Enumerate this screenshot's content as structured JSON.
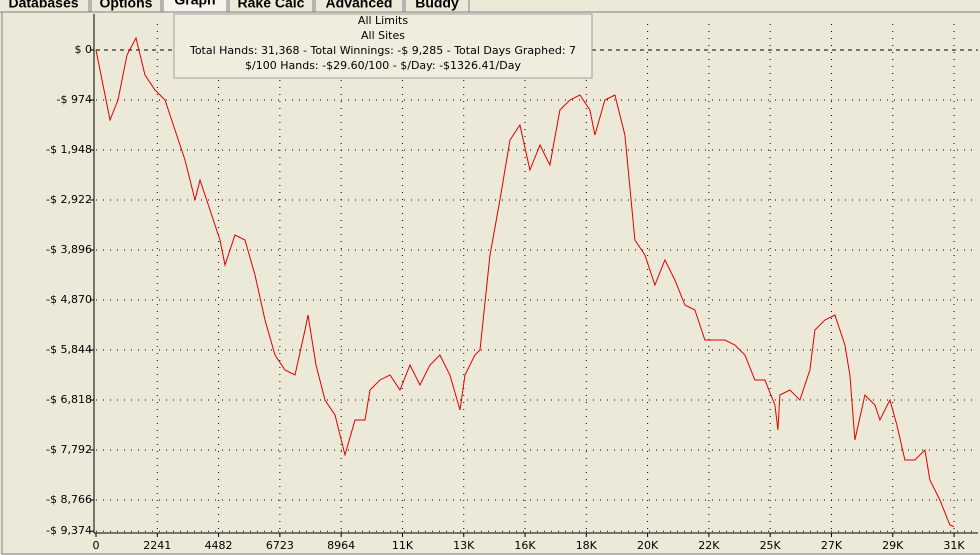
{
  "tabs": [
    "Databases",
    "Options",
    "Graph",
    "Rake Calc",
    "Advanced",
    "Buddy"
  ],
  "chart_data": {
    "type": "line",
    "info": [
      "All Limits",
      "All Sites",
      "Total Hands: 31,368 - Total Winnings: -$ 9,285 - Total Days Graphed: 7",
      "$/100 Hands: -$29.60/100 - $/Day: -$1326.41/Day"
    ],
    "x": [
      0,
      329,
      512,
      804,
      1133,
      1462,
      1791,
      2157,
      2523,
      2888,
      3254,
      3619,
      3802,
      4168,
      4533,
      4716,
      5082,
      5447,
      5813,
      6179,
      6544,
      6910,
      7275,
      7641,
      7751,
      8043,
      8372,
      8738,
      9103,
      9469,
      9835,
      10017,
      10383,
      10749,
      11114,
      11480,
      11845,
      12211,
      12576,
      12942,
      13308,
      13491,
      13856,
      14039,
      14405,
      14770,
      15136,
      15501,
      15867,
      16233,
      16598,
      16964,
      17329,
      17695,
      18061,
      18243,
      18609,
      18975,
      19340,
      19706,
      20071,
      20437,
      20802,
      21168,
      21534,
      21899,
      22265,
      22630,
      22996,
      23362,
      23727,
      24093,
      24458,
      24824,
      24934,
      25007,
      25373,
      25738,
      26104,
      26287,
      26652,
      27018,
      27384,
      27566,
      27749,
      28115,
      28480,
      28663,
      29029,
      29285,
      29577,
      29943,
      30308,
      30491,
      30857,
      31222,
      31368
    ],
    "series": [
      {
        "color": "#e00000",
        "values": [
          0,
          -877,
          -1364,
          -974,
          -97,
          234,
          -487,
          -779,
          -974,
          -1558,
          -2143,
          -2922,
          -2532,
          -3117,
          -3701,
          -4188,
          -3604,
          -3701,
          -4383,
          -5260,
          -5941,
          -6234,
          -6331,
          -5454,
          -5162,
          -6136,
          -6818,
          -7110,
          -7889,
          -7208,
          -7208,
          -6623,
          -6428,
          -6331,
          -6623,
          -6136,
          -6526,
          -6136,
          -5941,
          -6331,
          -7013,
          -6331,
          -5941,
          -5844,
          -3993,
          -2922,
          -1753,
          -1461,
          -2338,
          -1851,
          -2240,
          -1169,
          -974,
          -877,
          -1169,
          -1656,
          -974,
          -877,
          -1656,
          -3701,
          -3993,
          -4578,
          -4091,
          -4480,
          -4967,
          -5065,
          -5649,
          -5649,
          -5649,
          -5747,
          -5941,
          -6428,
          -6428,
          -6915,
          -7402,
          -6721,
          -6623,
          -6818,
          -6234,
          -5454,
          -5260,
          -5162,
          -5747,
          -6331,
          -7597,
          -6721,
          -6915,
          -7208,
          -6818,
          -7305,
          -7987,
          -7987,
          -7792,
          -8376,
          -8766,
          -9253,
          -9285
        ]
      }
    ],
    "xlim": [
      0,
      32250
    ],
    "ylim": [
      -9448,
      701
    ],
    "xticks": [
      0,
      2241,
      4482,
      6723,
      8964,
      {
        "value": 11205,
        "label": "11K"
      },
      {
        "value": 13446,
        "label": "13K"
      },
      {
        "value": 15687,
        "label": "16K"
      },
      {
        "value": 17928,
        "label": "18K"
      },
      {
        "value": 20169,
        "label": "20K"
      },
      {
        "value": 22410,
        "label": "22K"
      },
      {
        "value": 24651,
        "label": "25K"
      },
      {
        "value": 26892,
        "label": "27K"
      },
      {
        "value": 29133,
        "label": "29K"
      },
      {
        "value": 31374,
        "label": "31K"
      }
    ],
    "yticks": [
      {
        "value": 0,
        "label": "$ 0"
      },
      {
        "value": -974,
        "label": "-$ 974"
      },
      {
        "value": -1948,
        "label": "-$ 1,948"
      },
      {
        "value": -2922,
        "label": "-$ 2,922"
      },
      {
        "value": -3896,
        "label": "-$ 3,896"
      },
      {
        "value": -4870,
        "label": "-$ 4,870"
      },
      {
        "value": -5844,
        "label": "-$ 5,844"
      },
      {
        "value": -6818,
        "label": "-$ 6,818"
      },
      {
        "value": -7792,
        "label": "-$ 7,792"
      },
      {
        "value": -8766,
        "label": "-$ 8,766"
      },
      {
        "value": -9374,
        "label": "-$ 9,374"
      }
    ],
    "grid": true
  }
}
